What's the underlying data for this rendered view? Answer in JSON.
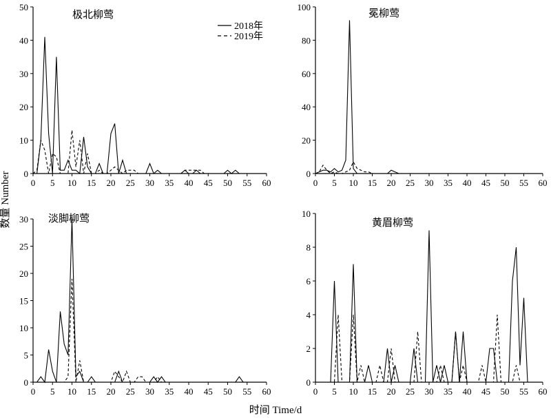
{
  "figure": {
    "shared_xlabel": "时间 Time/d",
    "shared_ylabel": "数量 Number"
  },
  "legend": {
    "items": [
      {
        "label": "2018年",
        "dash": "solid"
      },
      {
        "label": "2019年",
        "dash": "dashed"
      }
    ]
  },
  "chart_data": [
    {
      "type": "line",
      "title": "极北柳莺",
      "xlim": [
        0,
        60
      ],
      "ylim": [
        0,
        50
      ],
      "xticks": [
        0,
        5,
        10,
        15,
        20,
        25,
        30,
        35,
        40,
        45,
        50,
        55,
        60
      ],
      "yticks": [
        0,
        10,
        20,
        30,
        40,
        50
      ],
      "series": [
        {
          "name": "2018年",
          "x": [
            0,
            1,
            2,
            3,
            4,
            5,
            6,
            7,
            8,
            9,
            10,
            11,
            12,
            13,
            14,
            15,
            16,
            17,
            18,
            19,
            20,
            21,
            22,
            23,
            24,
            25,
            26,
            27,
            28,
            29,
            30,
            31,
            32,
            33,
            34,
            35,
            36,
            37,
            38,
            39,
            40,
            41,
            42,
            43,
            44,
            45,
            46,
            47,
            48,
            49,
            50,
            51,
            52,
            53,
            54,
            55,
            56,
            57,
            58,
            59
          ],
          "y": [
            0,
            0,
            10,
            41,
            12,
            0,
            35,
            1,
            1,
            4,
            1,
            1,
            0,
            11,
            2,
            0,
            0,
            3,
            0,
            0,
            12,
            15,
            0,
            4,
            0,
            0,
            0,
            0,
            0,
            0,
            3,
            0,
            1,
            0,
            0,
            0,
            0,
            0,
            0,
            1,
            0,
            0,
            1,
            0,
            0,
            0,
            0,
            0,
            0,
            0,
            1,
            0,
            1,
            0,
            0,
            0,
            0,
            0,
            0,
            0
          ]
        },
        {
          "name": "2019年",
          "x": [
            0,
            1,
            2,
            3,
            4,
            5,
            6,
            7,
            8,
            9,
            10,
            11,
            12,
            13,
            14,
            15,
            16,
            17,
            18,
            19,
            20,
            21,
            22,
            23,
            24,
            25,
            26,
            27,
            28,
            29,
            30,
            31,
            32,
            33,
            34,
            35,
            36,
            37,
            38,
            39,
            40,
            41,
            42,
            43,
            44,
            45,
            46,
            47,
            48,
            49,
            50,
            51,
            52,
            53,
            54,
            55,
            56,
            57,
            58,
            59
          ],
          "y": [
            0,
            1,
            10,
            7,
            0,
            6,
            5,
            0,
            0,
            0,
            13,
            2,
            10,
            0,
            6,
            0,
            0,
            1,
            0,
            0,
            1,
            2,
            1,
            0,
            1,
            1,
            1,
            0,
            0,
            0,
            0,
            0,
            0,
            0,
            0,
            0,
            0,
            0,
            0,
            1,
            1,
            1,
            1,
            1,
            0,
            0,
            0,
            0,
            0,
            0,
            0,
            0,
            0,
            0,
            0,
            0,
            0,
            0,
            0,
            0
          ]
        }
      ]
    },
    {
      "type": "line",
      "title": "冕柳莺",
      "xlim": [
        0,
        60
      ],
      "ylim": [
        0,
        100
      ],
      "xticks": [
        0,
        5,
        10,
        15,
        20,
        25,
        30,
        35,
        40,
        45,
        50,
        55,
        60
      ],
      "yticks": [
        0,
        20,
        40,
        60,
        80,
        100
      ],
      "series": [
        {
          "name": "2018年",
          "x": [
            0,
            1,
            2,
            3,
            4,
            5,
            6,
            7,
            8,
            9,
            10,
            11,
            12,
            13,
            14,
            15,
            16,
            17,
            18,
            19,
            20,
            21,
            22,
            23,
            24,
            25,
            26,
            27,
            28,
            29,
            30,
            31,
            32,
            33,
            34,
            35,
            36,
            37,
            38,
            39,
            40,
            41,
            42,
            43,
            44,
            45,
            46,
            47,
            48,
            49,
            50,
            51,
            52,
            53,
            54,
            55,
            56,
            57,
            58,
            59
          ],
          "y": [
            0,
            1,
            2,
            2,
            1,
            3,
            1,
            2,
            8,
            92,
            3,
            0,
            0,
            0,
            0,
            0,
            0,
            0,
            0,
            0,
            2,
            1,
            0,
            0,
            0,
            0,
            0,
            0,
            0,
            0,
            0,
            0,
            0,
            0,
            0,
            0,
            0,
            0,
            0,
            0,
            0,
            0,
            0,
            0,
            0,
            0,
            0,
            0,
            0,
            0,
            0,
            0,
            0,
            0,
            0,
            0,
            0,
            0,
            0,
            0
          ]
        },
        {
          "name": "2019年",
          "x": [
            0,
            1,
            2,
            3,
            4,
            5,
            6,
            7,
            8,
            9,
            10,
            11,
            12,
            13,
            14,
            15,
            16,
            17,
            18,
            19,
            20,
            21,
            22,
            23,
            24,
            25,
            26,
            27,
            28,
            29,
            30,
            31,
            32,
            33,
            34,
            35,
            36,
            37,
            38,
            39,
            40,
            41,
            42,
            43,
            44,
            45,
            46,
            47,
            48,
            49,
            50,
            51,
            52,
            53,
            54,
            55,
            56,
            57,
            58,
            59
          ],
          "y": [
            0,
            1,
            5,
            2,
            0,
            1,
            0,
            0,
            1,
            2,
            7,
            3,
            2,
            1,
            1,
            0,
            0,
            0,
            0,
            0,
            0,
            0,
            0,
            0,
            0,
            0,
            0,
            0,
            0,
            0,
            0,
            0,
            0,
            0,
            0,
            0,
            0,
            0,
            0,
            0,
            0,
            0,
            0,
            0,
            0,
            0,
            0,
            0,
            0,
            0,
            0,
            0,
            0,
            0,
            0,
            0,
            0,
            0,
            0,
            0
          ]
        }
      ]
    },
    {
      "type": "line",
      "title": "淡脚柳莺",
      "xlim": [
        0,
        60
      ],
      "ylim": [
        0,
        30
      ],
      "xticks": [
        0,
        5,
        10,
        15,
        20,
        25,
        30,
        35,
        40,
        45,
        50,
        55,
        60
      ],
      "yticks": [
        0,
        5,
        10,
        15,
        20,
        25,
        30
      ],
      "series": [
        {
          "name": "2018年",
          "x": [
            0,
            1,
            2,
            3,
            4,
            5,
            6,
            7,
            8,
            9,
            10,
            11,
            12,
            13,
            14,
            15,
            16,
            17,
            18,
            19,
            20,
            21,
            22,
            23,
            24,
            25,
            26,
            27,
            28,
            29,
            30,
            31,
            32,
            33,
            34,
            35,
            36,
            37,
            38,
            39,
            40,
            41,
            42,
            43,
            44,
            45,
            46,
            47,
            48,
            49,
            50,
            51,
            52,
            53,
            54,
            55,
            56,
            57,
            58,
            59
          ],
          "y": [
            0,
            0,
            1,
            0,
            6,
            2,
            0,
            13,
            7,
            5,
            30,
            1,
            2,
            0,
            0,
            1,
            0,
            0,
            0,
            0,
            0,
            0,
            2,
            0,
            0,
            0,
            0,
            0,
            0,
            0,
            0,
            1,
            0,
            1,
            0,
            0,
            0,
            0,
            0,
            0,
            0,
            0,
            0,
            0,
            0,
            0,
            0,
            0,
            0,
            0,
            0,
            0,
            0,
            1,
            0,
            0,
            0,
            0,
            0,
            0
          ]
        },
        {
          "name": "2019年",
          "x": [
            0,
            1,
            2,
            3,
            4,
            5,
            6,
            7,
            8,
            9,
            10,
            11,
            12,
            13,
            14,
            15,
            16,
            17,
            18,
            19,
            20,
            21,
            22,
            23,
            24,
            25,
            26,
            27,
            28,
            29,
            30,
            31,
            32,
            33,
            34,
            35,
            36,
            37,
            38,
            39,
            40,
            41,
            42,
            43,
            44,
            45,
            46,
            47,
            48,
            49,
            50,
            51,
            52,
            53,
            54,
            55,
            56,
            57,
            58,
            59
          ],
          "y": [
            0,
            0,
            0,
            0,
            0,
            0,
            0,
            0,
            0,
            1,
            19,
            0,
            4,
            0,
            0,
            0,
            0,
            0,
            0,
            0,
            0,
            2,
            1,
            0,
            2,
            0,
            0,
            1,
            1,
            0,
            0,
            0,
            1,
            0,
            0,
            0,
            0,
            0,
            0,
            0,
            0,
            0,
            0,
            0,
            0,
            0,
            0,
            0,
            0,
            0,
            0,
            0,
            0,
            0,
            0,
            0,
            0,
            0,
            0,
            0
          ]
        }
      ]
    },
    {
      "type": "line",
      "title": "黄眉柳莺",
      "xlim": [
        0,
        60
      ],
      "ylim": [
        0,
        10
      ],
      "xticks": [
        0,
        5,
        10,
        15,
        20,
        25,
        30,
        35,
        40,
        45,
        50,
        55,
        60
      ],
      "yticks": [
        0,
        2,
        4,
        6,
        8,
        10
      ],
      "series": [
        {
          "name": "2018年",
          "x": [
            0,
            1,
            2,
            3,
            4,
            5,
            6,
            7,
            8,
            9,
            10,
            11,
            12,
            13,
            14,
            15,
            16,
            17,
            18,
            19,
            20,
            21,
            22,
            23,
            24,
            25,
            26,
            27,
            28,
            29,
            30,
            31,
            32,
            33,
            34,
            35,
            36,
            37,
            38,
            39,
            40,
            41,
            42,
            43,
            44,
            45,
            46,
            47,
            48,
            49,
            50,
            51,
            52,
            53,
            54,
            55,
            56,
            57,
            58,
            59
          ],
          "y": [
            0,
            0,
            0,
            0,
            0,
            6,
            0,
            0,
            0,
            0,
            7,
            0,
            0,
            0,
            1,
            0,
            0,
            0,
            0,
            2,
            0,
            1,
            0,
            0,
            0,
            0,
            2,
            0,
            0,
            0,
            9,
            0,
            1,
            0,
            1,
            0,
            0,
            3,
            0,
            3,
            0,
            0,
            0,
            0,
            0,
            0,
            2,
            2,
            0,
            0,
            0,
            0,
            6,
            8,
            1,
            5,
            0,
            0,
            0,
            0
          ]
        },
        {
          "name": "2019年",
          "x": [
            0,
            1,
            2,
            3,
            4,
            5,
            6,
            7,
            8,
            9,
            10,
            11,
            12,
            13,
            14,
            15,
            16,
            17,
            18,
            19,
            20,
            21,
            22,
            23,
            24,
            25,
            26,
            27,
            28,
            29,
            30,
            31,
            32,
            33,
            34,
            35,
            36,
            37,
            38,
            39,
            40,
            41,
            42,
            43,
            44,
            45,
            46,
            47,
            48,
            49,
            50,
            51,
            52,
            53,
            54,
            55,
            56,
            57,
            58,
            59
          ],
          "y": [
            0,
            0,
            0,
            0,
            0,
            0,
            4,
            0,
            0,
            0,
            4,
            0,
            1,
            0,
            0,
            0,
            0,
            1,
            0,
            0,
            2,
            0,
            0,
            0,
            0,
            0,
            0,
            3,
            0,
            0,
            0,
            0,
            0,
            1,
            0,
            0,
            0,
            3,
            0,
            1,
            0,
            0,
            0,
            0,
            1,
            0,
            0,
            0,
            4,
            0,
            0,
            0,
            0,
            1,
            0,
            0,
            0,
            0,
            0,
            0
          ]
        }
      ]
    }
  ]
}
